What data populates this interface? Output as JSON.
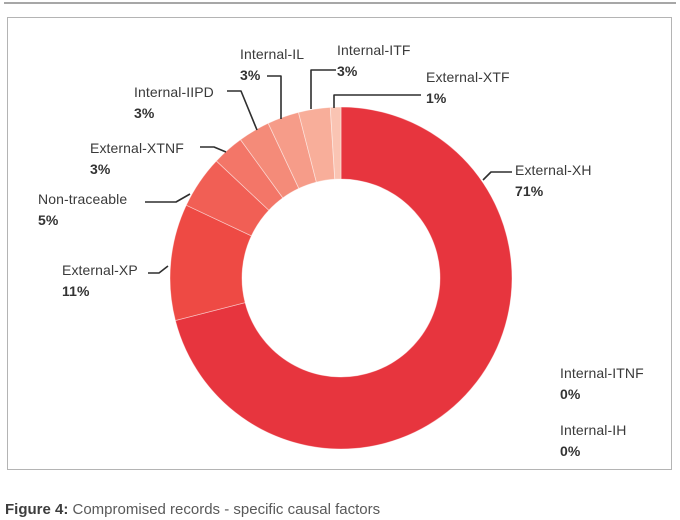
{
  "page": {
    "caption_label": "Figure 4:",
    "caption_text": " Compromised records - specific causal factors"
  },
  "chart_data": {
    "type": "pie",
    "variant": "donut",
    "title": "Compromised records - specific causal factors",
    "unit": "percent",
    "start_angle_deg": 0,
    "direction": "clockwise",
    "inner_radius_ratio": 0.58,
    "legend_position": "callout-labels",
    "categories": [
      "External-XH",
      "External-XP",
      "Non-traceable",
      "External-XTNF",
      "Internal-IIPD",
      "Internal-IL",
      "Internal-ITF",
      "External-XTF",
      "Internal-ITNF",
      "Internal-IH"
    ],
    "values": [
      71,
      11,
      5,
      3,
      3,
      3,
      3,
      1,
      0,
      0
    ],
    "colors": [
      "#E7353E",
      "#EE4A44",
      "#F15F55",
      "#F37668",
      "#F48B79",
      "#F69C89",
      "#F8AE9A",
      "#FAC4B3",
      "#FAC4B3",
      "#FAC4B3"
    ],
    "labels": [
      {
        "name": "External-XH",
        "value_label": "71%"
      },
      {
        "name": "External-XP",
        "value_label": "11%"
      },
      {
        "name": "Non-traceable",
        "value_label": "5%"
      },
      {
        "name": "External-XTNF",
        "value_label": "3%"
      },
      {
        "name": "Internal-IIPD",
        "value_label": "3%"
      },
      {
        "name": "Internal-IL",
        "value_label": "3%"
      },
      {
        "name": "Internal-ITF",
        "value_label": "3%"
      },
      {
        "name": "External-XTF",
        "value_label": "1%"
      },
      {
        "name": "Internal-ITNF",
        "value_label": "0%"
      },
      {
        "name": "Internal-IH",
        "value_label": "0%"
      }
    ],
    "leader_line_color": "#2f2f2f",
    "slice_separator_color": "#ffffff"
  }
}
